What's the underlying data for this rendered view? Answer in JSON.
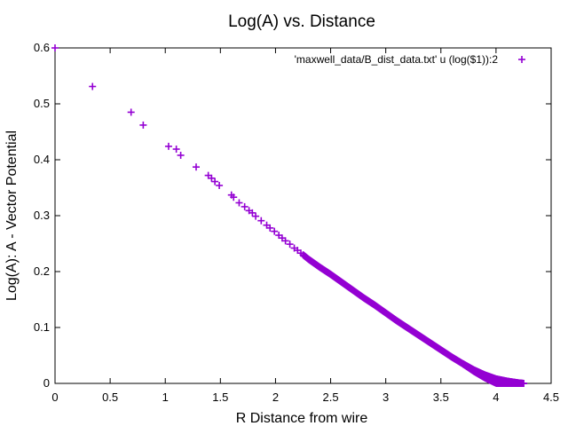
{
  "chart_data": {
    "type": "scatter",
    "title": "Log(A) vs. Distance",
    "xlabel": "R Distance from wire",
    "ylabel": "Log(A): A - Vector Potential",
    "xlim": [
      0,
      4.5
    ],
    "ylim": [
      0,
      0.6
    ],
    "xticks": [
      "0",
      "0.5",
      "1",
      "1.5",
      "2",
      "2.5",
      "3",
      "3.5",
      "4",
      "4.5"
    ],
    "yticks": [
      "0",
      "0.1",
      "0.2",
      "0.3",
      "0.4",
      "0.5",
      "0.6"
    ],
    "grid": false,
    "legend_position": "top-right",
    "marker": "plus",
    "color": "#9400d3",
    "series": [
      {
        "name": "'maxwell_data/B_dist_data.txt' u (log($1)):2",
        "points": [
          [
            0.0,
            0.6
          ],
          [
            0.34,
            0.531
          ],
          [
            0.69,
            0.485
          ],
          [
            0.8,
            0.462
          ],
          [
            1.03,
            0.424
          ],
          [
            1.1,
            0.419
          ],
          [
            1.14,
            0.408
          ],
          [
            1.28,
            0.387
          ],
          [
            1.39,
            0.372
          ],
          [
            1.42,
            0.367
          ],
          [
            1.45,
            0.361
          ],
          [
            1.49,
            0.354
          ],
          [
            1.6,
            0.337
          ],
          [
            1.62,
            0.333
          ],
          [
            1.67,
            0.323
          ],
          [
            1.72,
            0.316
          ],
          [
            1.76,
            0.309
          ],
          [
            1.79,
            0.305
          ],
          [
            1.82,
            0.299
          ],
          [
            1.87,
            0.291
          ],
          [
            1.92,
            0.283
          ],
          [
            1.95,
            0.278
          ],
          [
            1.99,
            0.272
          ],
          [
            2.03,
            0.265
          ],
          [
            2.06,
            0.26
          ],
          [
            2.09,
            0.255
          ],
          [
            2.13,
            0.249
          ],
          [
            2.17,
            0.242
          ],
          [
            2.2,
            0.238
          ],
          [
            2.23,
            0.233
          ]
        ],
        "dense_curve": [
          [
            2.25,
            0.23
          ],
          [
            2.3,
            0.222
          ],
          [
            2.4,
            0.208
          ],
          [
            2.5,
            0.195
          ],
          [
            2.6,
            0.181
          ],
          [
            2.7,
            0.167
          ],
          [
            2.8,
            0.153
          ],
          [
            2.9,
            0.14
          ],
          [
            3.0,
            0.126
          ],
          [
            3.1,
            0.112
          ],
          [
            3.2,
            0.099
          ],
          [
            3.3,
            0.086
          ],
          [
            3.4,
            0.073
          ],
          [
            3.5,
            0.06
          ],
          [
            3.6,
            0.047
          ],
          [
            3.7,
            0.035
          ],
          [
            3.8,
            0.024
          ],
          [
            3.9,
            0.015
          ],
          [
            4.0,
            0.008
          ],
          [
            4.1,
            0.004
          ],
          [
            4.2,
            0.001
          ],
          [
            4.25,
            0.0
          ]
        ]
      }
    ]
  }
}
